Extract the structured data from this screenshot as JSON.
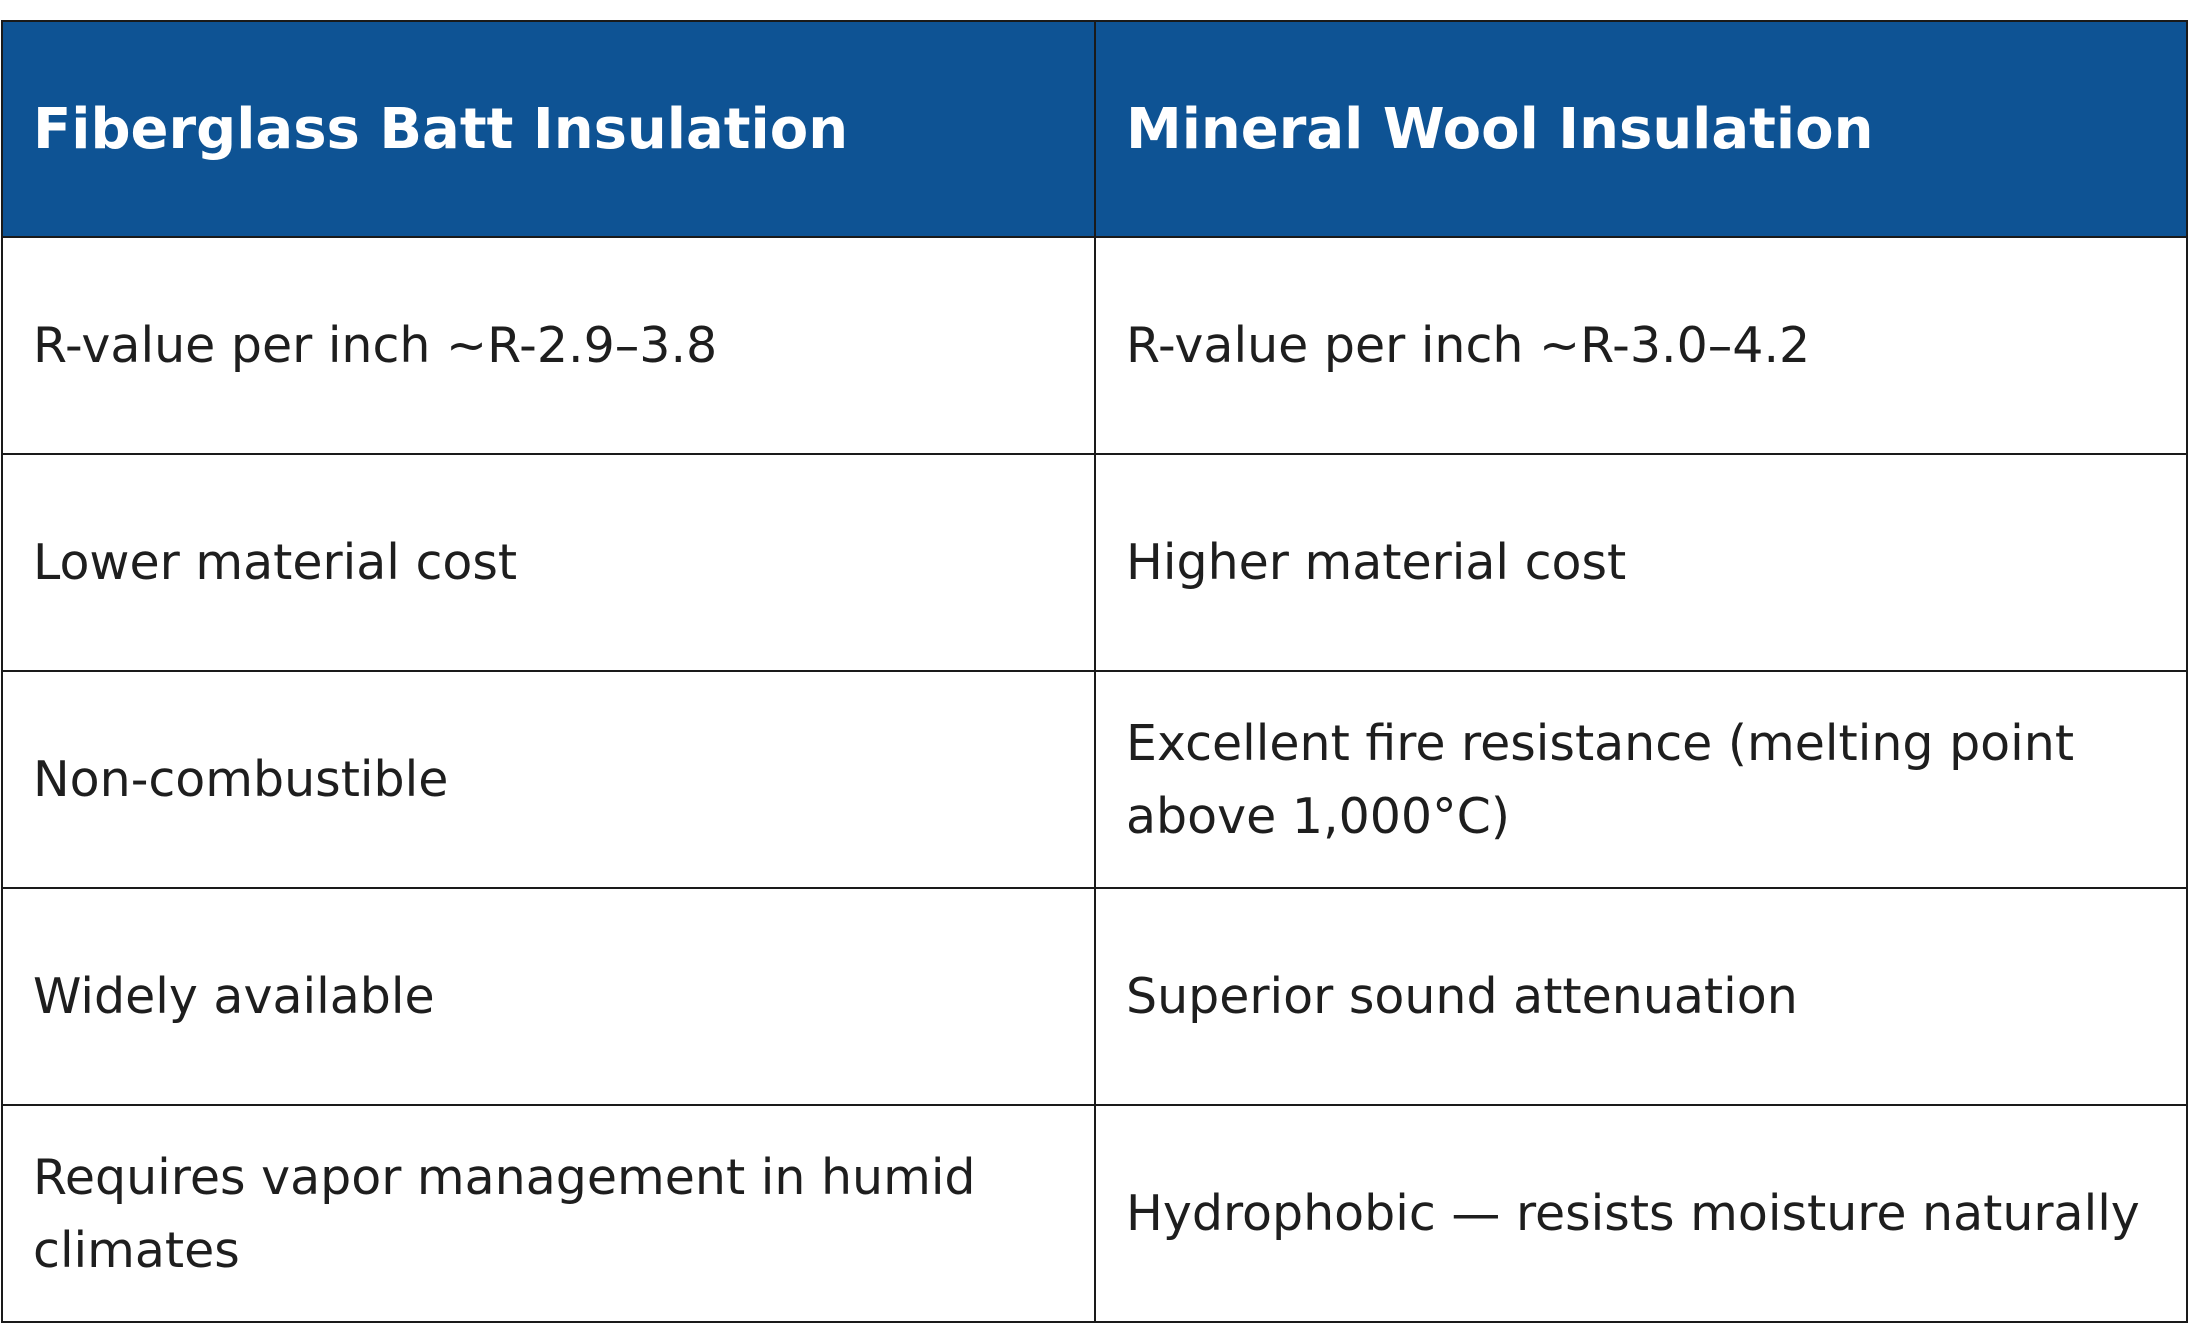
{
  "table": {
    "header": [
      "Fiberglass Batt Insulation",
      "Mineral Wool Insulation"
    ],
    "rows": [
      [
        "R-value per inch ~R-2.9–3.8",
        "R-value per inch ~R-3.0–4.2"
      ],
      [
        "Lower material cost",
        "Higher material cost"
      ],
      [
        "Non-combustible",
        "Excellent fire resistance (melting point above 1,000°C)"
      ],
      [
        "Widely available",
        "Superior sound attenuation"
      ],
      [
        "Requires vapor management in humid climates",
        "Hydrophobic — resists moisture naturally"
      ]
    ]
  }
}
